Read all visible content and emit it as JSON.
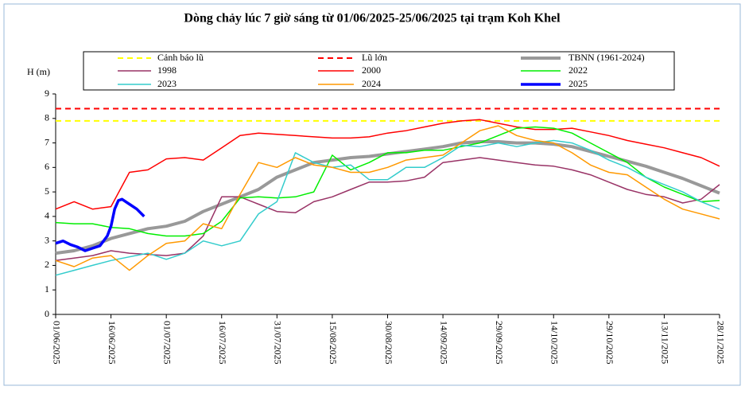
{
  "chart_data": {
    "type": "line",
    "title": "Dòng chảy lúc 7 giờ sáng từ 01/06/2025-25/06/2025 tại trạm Koh Khel",
    "y_label": "H (m)",
    "ylim": [
      0,
      9
    ],
    "yticks": [
      0,
      1,
      2,
      3,
      4,
      5,
      6,
      7,
      8,
      9
    ],
    "xlim": [
      "01/06/2025",
      "28/11/2025"
    ],
    "xticks": [
      "01/06/2025",
      "16/06/2025",
      "01/07/2025",
      "16/07/2025",
      "31/07/2025",
      "15/08/2025",
      "30/08/2025",
      "14/09/2025",
      "29/09/2025",
      "14/10/2025",
      "29/10/2025",
      "13/11/2025",
      "28/11/2025"
    ],
    "x": [
      "01/06/2025",
      "06/06/2025",
      "11/06/2025",
      "16/06/2025",
      "21/06/2025",
      "26/06/2025",
      "01/07/2025",
      "06/07/2025",
      "11/07/2025",
      "16/07/2025",
      "21/07/2025",
      "26/07/2025",
      "31/07/2025",
      "05/08/2025",
      "10/08/2025",
      "15/08/2025",
      "20/08/2025",
      "25/08/2025",
      "30/08/2025",
      "04/09/2025",
      "09/09/2025",
      "14/09/2025",
      "19/09/2025",
      "24/09/2025",
      "29/09/2025",
      "04/10/2025",
      "09/10/2025",
      "14/10/2025",
      "19/10/2025",
      "24/10/2025",
      "29/10/2025",
      "03/11/2025",
      "08/11/2025",
      "13/11/2025",
      "18/11/2025",
      "23/11/2025",
      "28/11/2025"
    ],
    "series": [
      {
        "name": "Cảnh báo lũ",
        "color": "#ffff00",
        "dashed": true,
        "level": 7.9
      },
      {
        "name": "Lũ lớn",
        "color": "#ff0000",
        "dashed": true,
        "level": 8.4
      },
      {
        "name": "TBNN (1961-2024)",
        "color": "#999999",
        "width": 4,
        "values": [
          2.5,
          2.6,
          2.8,
          3.1,
          3.3,
          3.5,
          3.6,
          3.8,
          4.2,
          4.5,
          4.8,
          5.1,
          5.6,
          5.9,
          6.2,
          6.3,
          6.4,
          6.45,
          6.55,
          6.65,
          6.75,
          6.85,
          7.0,
          7.05,
          7.05,
          7.0,
          7.0,
          6.95,
          6.85,
          6.65,
          6.45,
          6.25,
          6.05,
          5.8,
          5.55,
          5.25,
          4.95
        ]
      },
      {
        "name": "1998",
        "color": "#993366",
        "values": [
          2.2,
          2.3,
          2.4,
          2.6,
          2.5,
          2.45,
          2.4,
          2.5,
          3.2,
          4.8,
          4.8,
          4.5,
          4.2,
          4.15,
          4.6,
          4.8,
          5.1,
          5.4,
          5.4,
          5.45,
          5.6,
          6.2,
          6.3,
          6.4,
          6.3,
          6.2,
          6.1,
          6.05,
          5.9,
          5.7,
          5.4,
          5.1,
          4.9,
          4.8,
          4.55,
          4.7,
          5.3
        ]
      },
      {
        "name": "2000",
        "color": "#ff0000",
        "values": [
          4.3,
          4.6,
          4.3,
          4.4,
          5.8,
          5.9,
          6.35,
          6.4,
          6.3,
          6.8,
          7.3,
          7.4,
          7.35,
          7.3,
          7.25,
          7.2,
          7.2,
          7.25,
          7.4,
          7.5,
          7.65,
          7.8,
          7.9,
          7.95,
          7.8,
          7.65,
          7.55,
          7.55,
          7.6,
          7.45,
          7.3,
          7.1,
          6.95,
          6.8,
          6.6,
          6.4,
          6.05
        ]
      },
      {
        "name": "2022",
        "color": "#00ee00",
        "values": [
          3.75,
          3.7,
          3.7,
          3.55,
          3.5,
          3.3,
          3.2,
          3.2,
          3.3,
          3.8,
          4.75,
          4.8,
          4.75,
          4.8,
          5.0,
          6.5,
          5.9,
          6.2,
          6.6,
          6.6,
          6.7,
          6.7,
          6.85,
          7.0,
          7.3,
          7.6,
          7.65,
          7.6,
          7.4,
          7.0,
          6.6,
          6.2,
          5.6,
          5.2,
          4.9,
          4.6,
          4.65
        ]
      },
      {
        "name": "2023",
        "color": "#33cccc",
        "values": [
          1.6,
          1.8,
          2.0,
          2.2,
          2.35,
          2.5,
          2.25,
          2.5,
          3.0,
          2.8,
          3.0,
          4.1,
          4.6,
          6.6,
          6.2,
          6.0,
          6.1,
          5.5,
          5.5,
          6.0,
          6.0,
          6.4,
          6.9,
          6.85,
          7.0,
          6.85,
          7.0,
          7.1,
          7.0,
          6.7,
          6.3,
          6.0,
          5.6,
          5.3,
          5.0,
          4.6,
          4.3
        ]
      },
      {
        "name": "2024",
        "color": "#ff9900",
        "values": [
          2.2,
          1.95,
          2.3,
          2.4,
          1.8,
          2.4,
          2.9,
          3.0,
          3.7,
          3.5,
          4.9,
          6.2,
          6.0,
          6.4,
          6.1,
          6.0,
          5.8,
          5.8,
          6.0,
          6.3,
          6.4,
          6.5,
          7.0,
          7.5,
          7.7,
          7.3,
          7.1,
          7.0,
          6.6,
          6.1,
          5.8,
          5.7,
          5.2,
          4.7,
          4.3,
          4.1,
          3.9
        ]
      },
      {
        "name": "2025",
        "color": "#0000ff",
        "width": 3.5,
        "x": [
          "01/06/2025",
          "03/06/2025",
          "05/06/2025",
          "07/06/2025",
          "09/06/2025",
          "11/06/2025",
          "13/06/2025",
          "15/06/2025",
          "16/06/2025",
          "17/06/2025",
          "18/06/2025",
          "19/06/2025",
          "21/06/2025",
          "23/06/2025",
          "25/06/2025"
        ],
        "values": [
          2.9,
          3.0,
          2.85,
          2.75,
          2.6,
          2.7,
          2.8,
          3.2,
          3.6,
          4.3,
          4.65,
          4.7,
          4.5,
          4.3,
          4.0
        ]
      }
    ]
  }
}
